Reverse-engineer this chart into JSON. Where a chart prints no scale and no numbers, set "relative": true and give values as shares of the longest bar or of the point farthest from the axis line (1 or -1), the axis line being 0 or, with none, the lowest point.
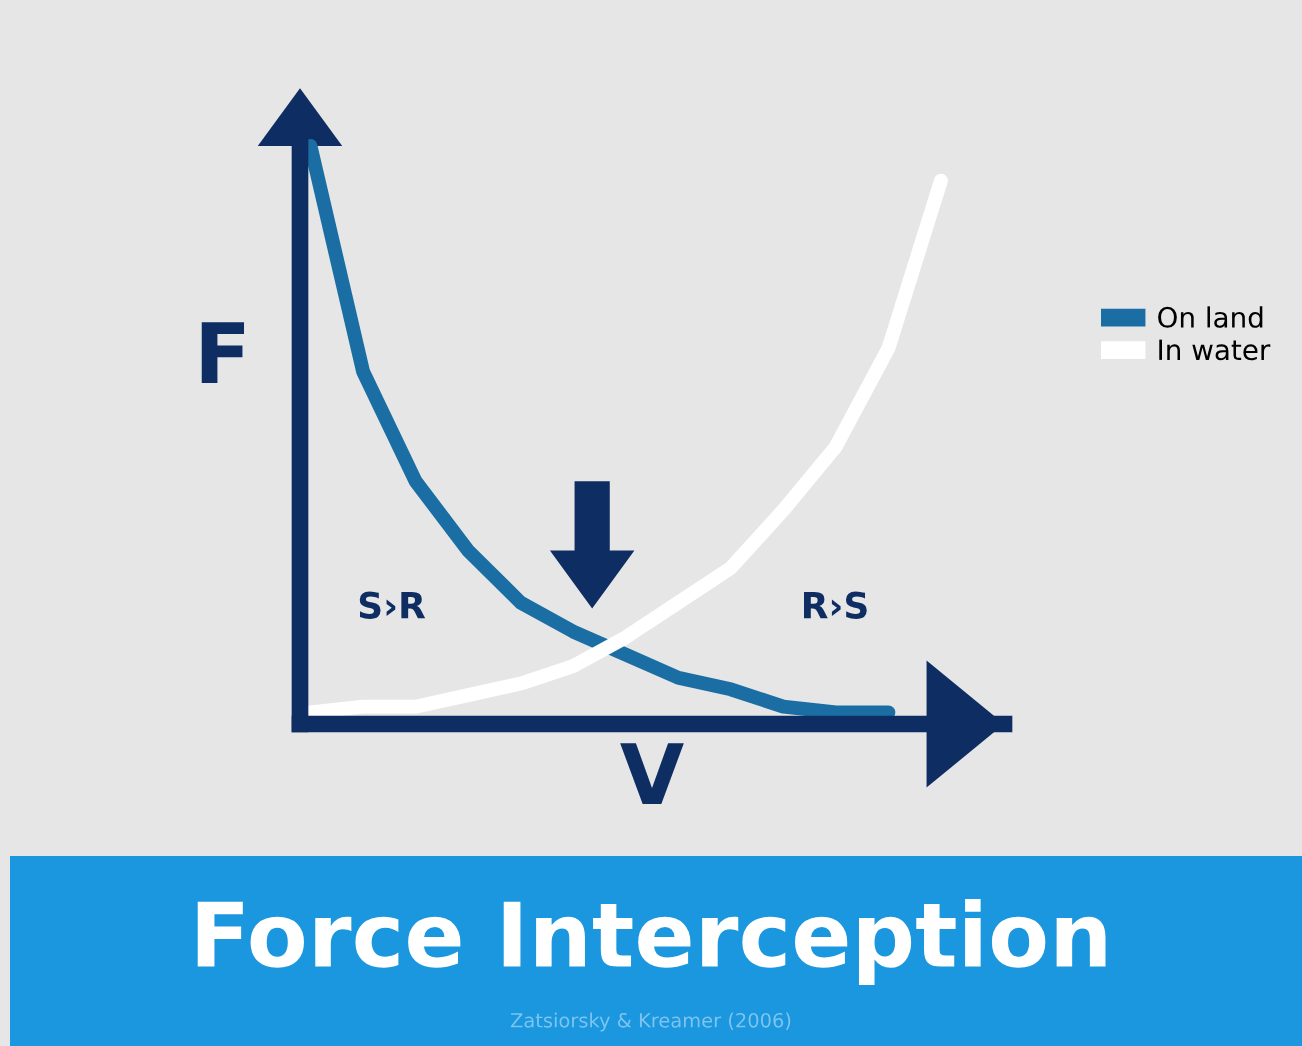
{
  "chart_data": {
    "type": "line",
    "title": "Force Interception",
    "xlabel": "V",
    "ylabel": "F",
    "relative": true,
    "categories": [
      null,
      null,
      null,
      null,
      null,
      null,
      null,
      null,
      null,
      null,
      null,
      null,
      null
    ],
    "series": [
      {
        "name": "On land",
        "color": "#1b6ea3",
        "values": [
          1.0,
          0.61,
          0.42,
          0.3,
          0.21,
          0.16,
          0.12,
          0.08,
          0.06,
          0.03,
          0.02,
          0.02,
          null
        ]
      },
      {
        "name": "In water",
        "color": "#ffffff",
        "values": [
          0.02,
          0.03,
          0.03,
          0.05,
          0.07,
          0.1,
          0.15,
          0.21,
          0.27,
          0.37,
          0.48,
          0.65,
          0.94
        ]
      }
    ],
    "annotations": [
      "S›R",
      "R›S",
      "Zatsiorsky & Kreamer (2006)"
    ],
    "legend": "right",
    "marker": "none",
    "line_style": "solid"
  }
}
